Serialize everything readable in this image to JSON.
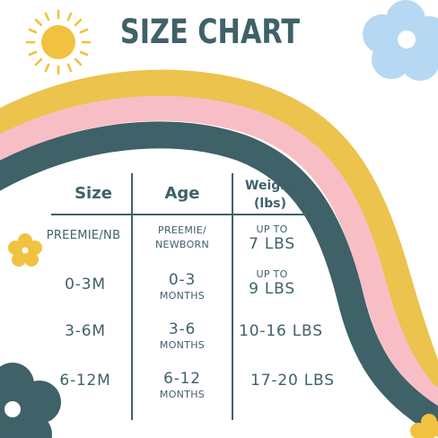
{
  "title": "SIZE CHART",
  "colors": {
    "teal": "#3f6168",
    "yellow": "#ebc34d",
    "pink": "#f7bfc5",
    "sky": "#b7d8f2",
    "sun": "#f1c23f",
    "white": "#ffffff"
  },
  "decorations": [
    "sun-icon",
    "flower-icon"
  ],
  "headers": {
    "size": "Size",
    "age": "Age",
    "weight_line1": "Weight",
    "weight_line2": "(lbs)"
  },
  "rows": [
    {
      "size": "PREEMIE/NB",
      "age_top": "PREEMIE/",
      "age_bottom": "NEWBORN",
      "weight_top": "UP TO",
      "weight_bottom": "7 LBS"
    },
    {
      "size": "0-3M",
      "age_top": "0-3",
      "age_bottom": "MONTHS",
      "weight_top": "UP TO",
      "weight_bottom": "9 LBS"
    },
    {
      "size": "3-6M",
      "age_top": "3-6",
      "age_bottom": "MONTHS",
      "weight": "10-16 LBS"
    },
    {
      "size": "6-12M",
      "age_top": "6-12",
      "age_bottom": "MONTHS",
      "weight": "17-20 LBS"
    }
  ]
}
